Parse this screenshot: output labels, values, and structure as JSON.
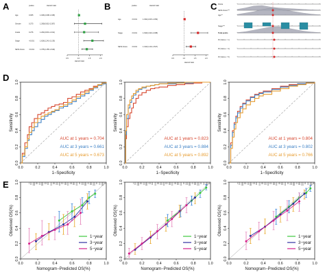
{
  "figure": {
    "panel_labels": [
      "A",
      "B",
      "C",
      "D",
      "E"
    ]
  },
  "forest_A": {
    "header": {
      "pvalue": "pvalue",
      "hr": "Hazard ratio"
    },
    "rows": [
      {
        "label": "Age",
        "p": "0.005",
        "hr_text": "1.026(1.008-1.045)",
        "hr": 1.03,
        "lo": 1.01,
        "hi": 1.05,
        "color": "#2ea043"
      },
      {
        "label": "Gender",
        "p": "0.273",
        "hr_text": "1.295(0.815-2.057)",
        "hr": 1.3,
        "lo": 0.82,
        "hi": 2.06,
        "color": "#2ea043"
      },
      {
        "label": "Grade",
        "p": "0.276",
        "hr_text": "1.261(0.831-1.911)",
        "hr": 1.26,
        "lo": 0.83,
        "hi": 1.91,
        "color": "#2ea043"
      },
      {
        "label": "Stage",
        "p": "<0.001",
        "hr_text": "1.626(1.241-2.133)",
        "hr": 1.63,
        "lo": 1.24,
        "hi": 2.13,
        "color": "#2ea043"
      },
      {
        "label": "NETs-Score",
        "p": "<0.001",
        "hr_text": "1.375(1.155-1.640)",
        "hr": 1.38,
        "lo": 1.16,
        "hi": 1.64,
        "color": "#2ea043"
      }
    ],
    "ticks": [
      "0.5",
      "1.0",
      "1.5",
      "2.0"
    ],
    "xlabel": "Hazard ratio"
  },
  "forest_B": {
    "header": {
      "pvalue": "pvalue",
      "hr": "Hazard ratio"
    },
    "rows": [
      {
        "label": "Age",
        "p": "<0.001",
        "hr_text": "1.034(1.015-1.053)",
        "hr": 1.03,
        "lo": 1.02,
        "hi": 1.05,
        "color": "#d62728"
      },
      {
        "label": "Stage",
        "p": "<0.001",
        "hr_text": "1.630(1.316-2.068)",
        "hr": 1.63,
        "lo": 1.32,
        "hi": 2.07,
        "color": "#d62728"
      },
      {
        "label": "NETs-Score",
        "p": "<0.001",
        "hr_text": "1.313(1.101-1.527)",
        "hr": 1.31,
        "lo": 1.1,
        "hi": 1.53,
        "color": "#d62728"
      }
    ],
    "ticks": [
      "0.5",
      "1.0",
      "1.5",
      "2.0"
    ],
    "xlabel": "Hazard ratio"
  },
  "nomogram_C": {
    "rows": [
      "Points",
      "NETs-Score***",
      "Age**",
      "Stage***",
      "Total points",
      "Pr( futime < 1 )",
      "Pr( futime < 3 )",
      "Pr( futime < 5 )"
    ]
  },
  "chart_data": [
    {
      "type": "line",
      "panel": "D-left",
      "xlabel": "1−Specificity",
      "ylabel": "Sensitivity",
      "xlim": [
        0,
        1
      ],
      "ylim": [
        0,
        1
      ],
      "xticks": [
        "0.0",
        "0.2",
        "0.4",
        "0.6",
        "0.8",
        "1.0"
      ],
      "yticks": [
        "0.0",
        "0.2",
        "0.4",
        "0.6",
        "0.8",
        "1.0"
      ],
      "series": [
        {
          "name": "AUC at 1 years = 0.704",
          "color": "#d6452d",
          "x": [
            0,
            0.02,
            0.05,
            0.08,
            0.1,
            0.13,
            0.16,
            0.2,
            0.24,
            0.28,
            0.32,
            0.36,
            0.4,
            0.45,
            0.5,
            0.55,
            0.6,
            0.65,
            0.7,
            0.75,
            0.8,
            0.85,
            0.9,
            0.95,
            1.0
          ],
          "y": [
            0,
            0.12,
            0.25,
            0.35,
            0.45,
            0.5,
            0.55,
            0.6,
            0.62,
            0.65,
            0.68,
            0.7,
            0.72,
            0.73,
            0.75,
            0.8,
            0.82,
            0.85,
            0.88,
            0.9,
            0.92,
            0.95,
            0.97,
            0.99,
            1.0
          ]
        },
        {
          "name": "AUC at 3 years = 0.661",
          "color": "#3b7fc4",
          "x": [
            0,
            0.02,
            0.05,
            0.08,
            0.1,
            0.13,
            0.16,
            0.2,
            0.24,
            0.28,
            0.32,
            0.36,
            0.4,
            0.45,
            0.5,
            0.55,
            0.6,
            0.65,
            0.7,
            0.75,
            0.8,
            0.85,
            0.9,
            0.95,
            1.0
          ],
          "y": [
            0,
            0.08,
            0.18,
            0.28,
            0.35,
            0.4,
            0.45,
            0.5,
            0.54,
            0.58,
            0.6,
            0.63,
            0.65,
            0.68,
            0.7,
            0.73,
            0.76,
            0.8,
            0.83,
            0.86,
            0.9,
            0.93,
            0.96,
            0.98,
            1.0
          ]
        },
        {
          "name": "AUC at 5 years = 0.673",
          "color": "#e69b2e",
          "x": [
            0,
            0.02,
            0.05,
            0.08,
            0.1,
            0.13,
            0.16,
            0.2,
            0.24,
            0.28,
            0.32,
            0.36,
            0.4,
            0.45,
            0.5,
            0.55,
            0.6,
            0.65,
            0.7,
            0.75,
            0.8,
            0.85,
            0.9,
            0.95,
            1.0
          ],
          "y": [
            0,
            0.1,
            0.2,
            0.3,
            0.38,
            0.44,
            0.5,
            0.55,
            0.58,
            0.6,
            0.62,
            0.64,
            0.66,
            0.7,
            0.72,
            0.75,
            0.78,
            0.82,
            0.85,
            0.88,
            0.91,
            0.94,
            0.97,
            0.99,
            1.0
          ]
        }
      ]
    },
    {
      "type": "line",
      "panel": "D-middle",
      "xlabel": "1−Specificity",
      "ylabel": "Sensitivity",
      "xlim": [
        0,
        1
      ],
      "ylim": [
        0,
        1
      ],
      "xticks": [
        "0.0",
        "0.2",
        "0.4",
        "0.6",
        "0.8",
        "1.0"
      ],
      "yticks": [
        "0.0",
        "0.2",
        "0.4",
        "0.6",
        "0.8",
        "1.0"
      ],
      "series": [
        {
          "name": "AUC at 1 years = 0.823",
          "color": "#d6452d",
          "x": [
            0,
            0.01,
            0.02,
            0.04,
            0.06,
            0.08,
            0.1,
            0.13,
            0.16,
            0.2,
            0.25,
            0.3,
            0.35,
            0.4,
            0.5,
            0.6,
            0.7,
            0.8,
            0.9,
            1.0
          ],
          "y": [
            0,
            0.3,
            0.45,
            0.55,
            0.62,
            0.68,
            0.74,
            0.8,
            0.84,
            0.87,
            0.9,
            0.92,
            0.93,
            0.94,
            0.96,
            0.97,
            0.98,
            0.99,
            1.0,
            1.0
          ]
        },
        {
          "name": "AUC at 3 years = 0.884",
          "color": "#3b7fc4",
          "x": [
            0,
            0.01,
            0.02,
            0.04,
            0.06,
            0.08,
            0.1,
            0.13,
            0.16,
            0.2,
            0.25,
            0.3,
            0.35,
            0.4,
            0.5,
            0.6,
            0.7,
            0.8,
            0.9,
            1.0
          ],
          "y": [
            0,
            0.35,
            0.55,
            0.68,
            0.75,
            0.8,
            0.84,
            0.88,
            0.91,
            0.93,
            0.95,
            0.96,
            0.97,
            0.98,
            0.98,
            0.99,
            0.99,
            1.0,
            1.0,
            1.0
          ]
        },
        {
          "name": "AUC at 5 years = 0.892",
          "color": "#e69b2e",
          "x": [
            0,
            0.01,
            0.02,
            0.04,
            0.06,
            0.08,
            0.1,
            0.13,
            0.16,
            0.2,
            0.25,
            0.3,
            0.35,
            0.4,
            0.5,
            0.6,
            0.7,
            0.8,
            0.9,
            1.0
          ],
          "y": [
            0,
            0.4,
            0.6,
            0.72,
            0.78,
            0.83,
            0.86,
            0.9,
            0.92,
            0.94,
            0.95,
            0.96,
            0.97,
            0.98,
            0.99,
            0.99,
            1.0,
            1.0,
            1.0,
            1.0
          ]
        }
      ]
    },
    {
      "type": "line",
      "panel": "D-right",
      "xlabel": "1−Specificity",
      "ylabel": "Sensitivity",
      "xlim": [
        0,
        1
      ],
      "ylim": [
        0,
        1
      ],
      "xticks": [
        "0.0",
        "0.2",
        "0.4",
        "0.6",
        "0.8",
        "1.0"
      ],
      "yticks": [
        "0.0",
        "0.2",
        "0.4",
        "0.6",
        "0.8",
        "1.0"
      ],
      "series": [
        {
          "name": "AUC at 1 years = 0.804",
          "color": "#d6452d",
          "x": [
            0,
            0.02,
            0.04,
            0.06,
            0.08,
            0.1,
            0.13,
            0.16,
            0.2,
            0.25,
            0.3,
            0.35,
            0.4,
            0.5,
            0.6,
            0.7,
            0.8,
            0.9,
            1.0
          ],
          "y": [
            0,
            0.25,
            0.4,
            0.5,
            0.58,
            0.64,
            0.7,
            0.74,
            0.78,
            0.82,
            0.85,
            0.87,
            0.89,
            0.92,
            0.95,
            0.97,
            0.98,
            0.99,
            1.0
          ]
        },
        {
          "name": "AUC at 3 years = 0.802",
          "color": "#3b7fc4",
          "x": [
            0,
            0.02,
            0.04,
            0.06,
            0.08,
            0.1,
            0.13,
            0.16,
            0.2,
            0.25,
            0.3,
            0.35,
            0.4,
            0.5,
            0.6,
            0.7,
            0.8,
            0.9,
            1.0
          ],
          "y": [
            0,
            0.22,
            0.38,
            0.48,
            0.56,
            0.62,
            0.68,
            0.73,
            0.77,
            0.81,
            0.84,
            0.86,
            0.88,
            0.91,
            0.94,
            0.96,
            0.98,
            0.99,
            1.0
          ]
        },
        {
          "name": "AUC at 5 years = 0.766",
          "color": "#e69b2e",
          "x": [
            0,
            0.02,
            0.04,
            0.06,
            0.08,
            0.1,
            0.13,
            0.16,
            0.2,
            0.25,
            0.3,
            0.35,
            0.4,
            0.5,
            0.6,
            0.7,
            0.8,
            0.9,
            1.0
          ],
          "y": [
            0,
            0.18,
            0.32,
            0.42,
            0.5,
            0.56,
            0.62,
            0.67,
            0.72,
            0.76,
            0.8,
            0.83,
            0.85,
            0.89,
            0.92,
            0.95,
            0.97,
            0.99,
            1.0
          ]
        }
      ]
    },
    {
      "type": "scatter",
      "panel": "E-left",
      "xlabel": "Nomogram−Predicted OS(%)",
      "ylabel": "Observed OS(%)",
      "xlim": [
        0,
        1
      ],
      "ylim": [
        0,
        1
      ],
      "xticks": [
        "0.0",
        "0.2",
        "0.4",
        "0.6",
        "0.8",
        "1.0"
      ],
      "yticks": [
        "0.0",
        "0.2",
        "0.4",
        "0.6",
        "0.8",
        "1.0"
      ],
      "series": [
        {
          "name": "1−year",
          "color": "#3cc93c",
          "x": [
            0.45,
            0.6,
            0.72,
            0.8,
            0.87
          ],
          "y": [
            0.5,
            0.62,
            0.7,
            0.8,
            0.85
          ],
          "lo": [
            0.35,
            0.5,
            0.6,
            0.72,
            0.8
          ],
          "hi": [
            0.62,
            0.72,
            0.8,
            0.88,
            0.9
          ]
        },
        {
          "name": "3−year",
          "color": "#3030a0",
          "x": [
            0.18,
            0.33,
            0.5,
            0.63,
            0.78
          ],
          "y": [
            0.23,
            0.35,
            0.45,
            0.55,
            0.75
          ],
          "lo": [
            0.12,
            0.25,
            0.32,
            0.42,
            0.65
          ],
          "hi": [
            0.33,
            0.46,
            0.58,
            0.68,
            0.85
          ]
        },
        {
          "name": "5−year",
          "color": "#d61f8a",
          "x": [
            0.1,
            0.25,
            0.4,
            0.55,
            0.7
          ],
          "y": [
            0.2,
            0.3,
            0.38,
            0.45,
            0.6
          ],
          "lo": [
            0.08,
            0.18,
            0.25,
            0.32,
            0.45
          ],
          "hi": [
            0.4,
            0.5,
            0.55,
            0.62,
            0.78
          ]
        }
      ]
    },
    {
      "type": "scatter",
      "panel": "E-middle",
      "xlabel": "Nomogram−Predicted OS(%)",
      "ylabel": "Observed OS(%)",
      "xlim": [
        0,
        1
      ],
      "ylim": [
        0,
        1
      ],
      "xticks": [
        "0.0",
        "0.2",
        "0.4",
        "0.6",
        "0.8",
        "1.0"
      ],
      "yticks": [
        "0.0",
        "0.2",
        "0.4",
        "0.6",
        "0.8",
        "1.0"
      ],
      "series": [
        {
          "name": "1−year",
          "color": "#3cc93c",
          "x": [
            0.5,
            0.65,
            0.78,
            0.88,
            0.95
          ],
          "y": [
            0.5,
            0.63,
            0.76,
            0.86,
            0.93
          ],
          "lo": [
            0.42,
            0.55,
            0.7,
            0.8,
            0.9
          ],
          "hi": [
            0.58,
            0.7,
            0.82,
            0.9,
            0.97
          ]
        },
        {
          "name": "3−year",
          "color": "#3030a0",
          "x": [
            0.12,
            0.3,
            0.48,
            0.64,
            0.82
          ],
          "y": [
            0.12,
            0.28,
            0.45,
            0.62,
            0.8
          ],
          "lo": [
            0.06,
            0.2,
            0.36,
            0.54,
            0.72
          ],
          "hi": [
            0.2,
            0.36,
            0.54,
            0.7,
            0.86
          ]
        },
        {
          "name": "5−year",
          "color": "#d61f8a",
          "x": [
            0.05,
            0.2,
            0.38,
            0.55,
            0.72
          ],
          "y": [
            0.07,
            0.2,
            0.36,
            0.52,
            0.7
          ],
          "lo": [
            0.02,
            0.12,
            0.26,
            0.42,
            0.6
          ],
          "hi": [
            0.14,
            0.28,
            0.45,
            0.62,
            0.8
          ]
        }
      ]
    },
    {
      "type": "scatter",
      "panel": "E-right",
      "xlabel": "Nomogram−Predicted OS(%)",
      "ylabel": "Observed OS(%)",
      "xlim": [
        0,
        1
      ],
      "ylim": [
        0,
        1
      ],
      "xticks": [
        "0.0",
        "0.2",
        "0.4",
        "0.6",
        "0.8",
        "1.0"
      ],
      "yticks": [
        "0.0",
        "0.2",
        "0.4",
        "0.6",
        "0.8",
        "1.0"
      ],
      "series": [
        {
          "name": "1−year",
          "color": "#3cc93c",
          "x": [
            0.55,
            0.7,
            0.82,
            0.9,
            0.95
          ],
          "y": [
            0.55,
            0.68,
            0.8,
            0.86,
            0.92
          ],
          "lo": [
            0.45,
            0.6,
            0.72,
            0.8,
            0.88
          ],
          "hi": [
            0.65,
            0.76,
            0.86,
            0.92,
            0.96
          ]
        },
        {
          "name": "3−year",
          "color": "#3030a0",
          "x": [
            0.25,
            0.42,
            0.6,
            0.75,
            0.88
          ],
          "y": [
            0.3,
            0.42,
            0.58,
            0.72,
            0.85
          ],
          "lo": [
            0.2,
            0.33,
            0.48,
            0.62,
            0.78
          ],
          "hi": [
            0.4,
            0.52,
            0.68,
            0.8,
            0.9
          ]
        },
        {
          "name": "5−year",
          "color": "#d61f8a",
          "x": [
            0.2,
            0.35,
            0.52,
            0.68,
            0.82
          ],
          "y": [
            0.23,
            0.36,
            0.5,
            0.63,
            0.75
          ],
          "lo": [
            0.12,
            0.25,
            0.38,
            0.5,
            0.62
          ],
          "hi": [
            0.35,
            0.48,
            0.62,
            0.76,
            0.86
          ]
        }
      ]
    }
  ]
}
